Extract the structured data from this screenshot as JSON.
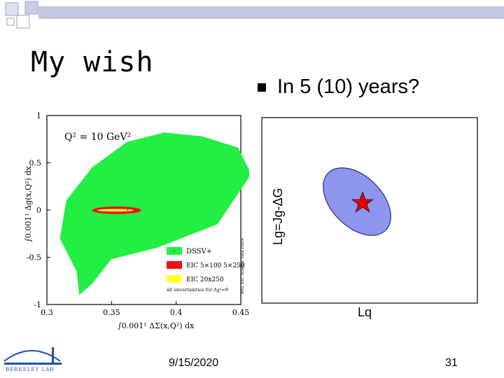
{
  "slide": {
    "title": "My wish",
    "bullet": "In 5 (10) years?",
    "date": "9/15/2020",
    "page_number": "31",
    "logo_text": "BERKELEY LAB"
  },
  "chart_data": [
    {
      "type": "contour",
      "annotation": "Q² = 10 GeV²",
      "xlabel": "∫0.001¹ ΔΣ(x,Q²) dx",
      "ylabel": "∫0.001¹ Δg(x,Q²) dx",
      "xlim": [
        0.3,
        0.45
      ],
      "ylim": [
        -1,
        1
      ],
      "xticks": [
        "0.3",
        "0.35",
        "0.4",
        "0.45"
      ],
      "yticks": [
        "-1",
        "-0.5",
        "0",
        "0.5",
        "1"
      ],
      "side_label": "BNL EIC Science Task Force",
      "legend": [
        "DSSV+",
        "EIC 5×100 5×250",
        "EIC 20x250"
      ],
      "legend_note": "all uncertainties for Δχ²=9",
      "colors": {
        "dssv": "#22ee44",
        "eic_low": "#ee1111",
        "eic_high": "#ffff33"
      },
      "series": [
        {
          "name": "DSSV+",
          "x": [
            0.323,
            0.31,
            0.315,
            0.335,
            0.362,
            0.391,
            0.42,
            0.448,
            0.458,
            0.432,
            0.385,
            0.35,
            0.335,
            0.325,
            0.323
          ],
          "y": [
            -0.65,
            -0.3,
            0.1,
            0.45,
            0.72,
            0.82,
            0.78,
            0.66,
            0.38,
            -0.15,
            -0.4,
            -0.52,
            -0.78,
            -0.9,
            -0.65
          ]
        },
        {
          "name": "EIC 5×100 5×250",
          "center": [
            0.354,
            -0.003
          ],
          "half_width": 0.019,
          "half_height": 0.04
        },
        {
          "name": "EIC 20x250",
          "center": [
            0.353,
            -0.003
          ],
          "half_width": 0.014,
          "half_height": 0.014
        }
      ]
    },
    {
      "type": "scatter",
      "xlabel": "Lq",
      "ylabel": "Lg=Jg-ΔG",
      "ellipse_color": "#8e95ee",
      "marker_color": "#e00000",
      "marker_label": "★"
    }
  ]
}
